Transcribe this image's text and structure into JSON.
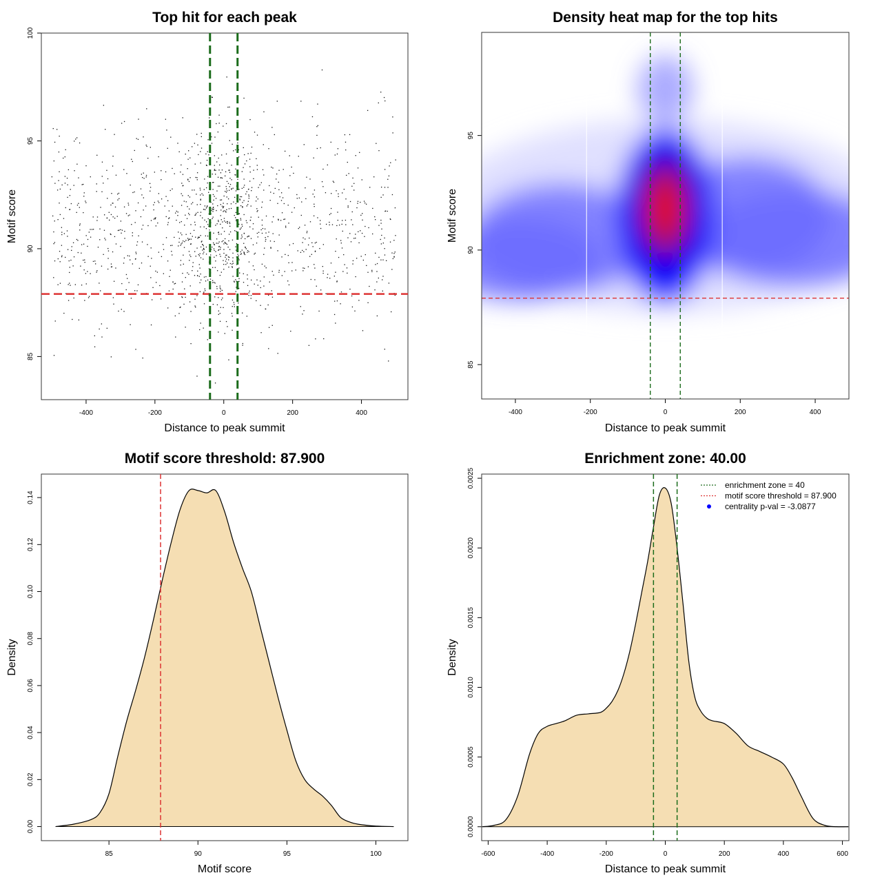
{
  "colors": {
    "threshold_red": "#dd3333",
    "zone_green": "#1a6b1a",
    "density_fill": "#f5deb3",
    "heat_low": "#ffffff",
    "heat_mid": "#0000ff",
    "heat_high": "#ff0000",
    "legend_dot": "#0000ff"
  },
  "chart_data": [
    {
      "type": "scatter",
      "title": "Top hit for each peak",
      "xlabel": "Distance to peak summit",
      "ylabel": "Motif score",
      "xlim": [
        -530,
        535
      ],
      "ylim": [
        83,
        100
      ],
      "xticks": [
        -400,
        -200,
        0,
        200,
        400
      ],
      "yticks": [
        85,
        90,
        95,
        100
      ],
      "xtick_labels": [
        "-400",
        "-200",
        "0",
        "200",
        "400"
      ],
      "ytick_labels": [
        "85",
        "90",
        "95",
        "100"
      ],
      "threshold": 87.9,
      "zone": [
        -40,
        40
      ],
      "grid": false,
      "point_count": 1400,
      "x_range": [
        -500,
        500
      ],
      "y_range": [
        83.5,
        99.5
      ],
      "center": [
        0,
        91.5
      ]
    },
    {
      "type": "heatmap",
      "title": "Density heat map for the top hits",
      "xlabel": "Distance to peak summit",
      "ylabel": "Motif score",
      "xlim": [
        -490,
        490
      ],
      "ylim": [
        83.5,
        99.5
      ],
      "xticks": [
        -400,
        -200,
        0,
        200,
        400
      ],
      "yticks": [
        85,
        90,
        95
      ],
      "xtick_labels": [
        "-400",
        "-200",
        "0",
        "200",
        "400"
      ],
      "ytick_labels": [
        "85",
        "90",
        "95"
      ],
      "threshold": 87.9,
      "zone": [
        -40,
        40
      ],
      "white_lines_x": [
        -210,
        152
      ],
      "density_peak": [
        0,
        91.8
      ],
      "grid": false
    },
    {
      "type": "area",
      "title": "Motif score threshold: 87.900",
      "xlabel": "Motif score",
      "ylabel": "Density",
      "xlim": [
        81.2,
        101.8
      ],
      "ylim": [
        -0.006,
        0.15
      ],
      "xticks": [
        85,
        90,
        95,
        100
      ],
      "yticks": [
        0,
        0.02,
        0.04,
        0.06,
        0.08,
        0.1,
        0.12,
        0.14
      ],
      "xtick_labels": [
        "85",
        "90",
        "95",
        "100"
      ],
      "ytick_labels": [
        "0.00",
        "0.02",
        "0.04",
        "0.06",
        "0.08",
        "0.10",
        "0.12",
        "0.14"
      ],
      "threshold": 87.9,
      "x": [
        82,
        83,
        84,
        84.5,
        85,
        85.5,
        86,
        86.5,
        87,
        87.5,
        88,
        88.5,
        89,
        89.5,
        90,
        90.5,
        91,
        91.5,
        92,
        92.5,
        93,
        93.5,
        94,
        94.5,
        95,
        95.5,
        96,
        96.5,
        97,
        97.5,
        98,
        98.5,
        99,
        100,
        101
      ],
      "y": [
        0,
        0.001,
        0.003,
        0.006,
        0.014,
        0.03,
        0.045,
        0.058,
        0.072,
        0.088,
        0.105,
        0.121,
        0.135,
        0.143,
        0.143,
        0.142,
        0.143,
        0.134,
        0.121,
        0.11,
        0.1,
        0.085,
        0.07,
        0.055,
        0.041,
        0.028,
        0.02,
        0.016,
        0.013,
        0.009,
        0.004,
        0.002,
        0.001,
        0.0002,
        0
      ],
      "grid": false
    },
    {
      "type": "area",
      "title": "Enrichment zone: 40.00",
      "xlabel": "Distance to peak summit",
      "ylabel": "Density",
      "xlim": [
        -622,
        622
      ],
      "ylim": [
        -0.0001,
        0.00253
      ],
      "xticks": [
        -600,
        -400,
        -200,
        0,
        200,
        400,
        600
      ],
      "yticks": [
        0,
        0.0005,
        0.001,
        0.0015,
        0.002,
        0.0025
      ],
      "xtick_labels": [
        "-600",
        "-400",
        "-200",
        "0",
        "200",
        "400",
        "600"
      ],
      "ytick_labels": [
        "0.0000",
        "0.0005",
        "0.0010",
        "0.0015",
        "0.0020",
        "0.0025"
      ],
      "zone": [
        -40,
        40
      ],
      "x": [
        -620,
        -580,
        -540,
        -500,
        -460,
        -430,
        -400,
        -370,
        -340,
        -300,
        -260,
        -220,
        -200,
        -180,
        -160,
        -140,
        -120,
        -100,
        -80,
        -60,
        -40,
        -20,
        0,
        20,
        40,
        60,
        80,
        100,
        120,
        140,
        160,
        200,
        240,
        280,
        320,
        360,
        400,
        430,
        460,
        500,
        540,
        580,
        620
      ],
      "y": [
        0,
        1e-05,
        5e-05,
        0.00022,
        0.00052,
        0.00067,
        0.00072,
        0.00074,
        0.00076,
        0.0008,
        0.00081,
        0.00082,
        0.00085,
        0.0009,
        0.00098,
        0.0011,
        0.00126,
        0.00146,
        0.00168,
        0.0019,
        0.00215,
        0.00238,
        0.00243,
        0.00232,
        0.002,
        0.0016,
        0.00118,
        0.00093,
        0.00083,
        0.00078,
        0.00076,
        0.00074,
        0.00067,
        0.00058,
        0.00054,
        0.0005,
        0.00045,
        0.00035,
        0.00022,
        6e-05,
        1e-05,
        0,
        0
      ],
      "grid": false,
      "legend": "top-right",
      "legend_entries": [
        {
          "label": "enrichment zone = 40",
          "style": "green-dotted"
        },
        {
          "label": "motif score threshold = 87.900",
          "style": "red-dotted"
        },
        {
          "label": "centrality p-val = -3.0877",
          "style": "blue-dot"
        }
      ]
    }
  ]
}
